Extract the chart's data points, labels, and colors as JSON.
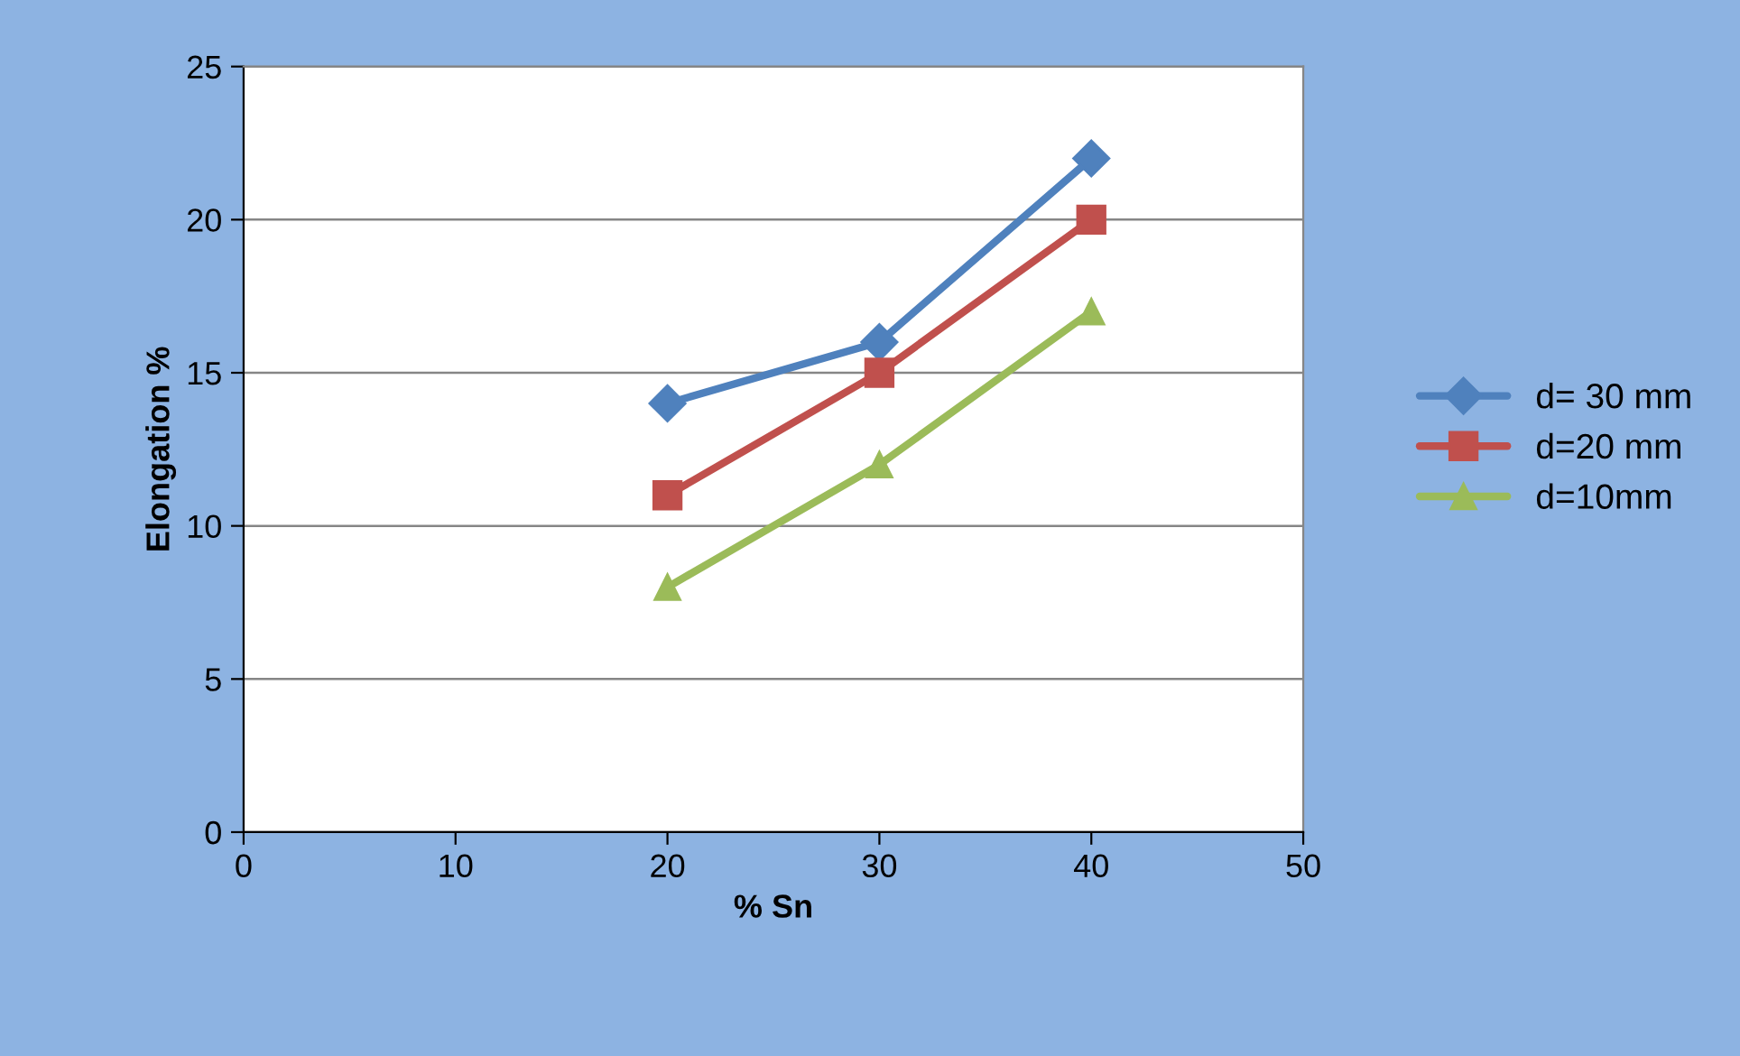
{
  "chart_data": {
    "type": "line",
    "xlabel": "% Sn",
    "ylabel": "Elongation %",
    "x": [
      20,
      30,
      40
    ],
    "series": [
      {
        "name": "d= 30 mm",
        "color": "#4f81bd",
        "marker": "diamond",
        "values": [
          14,
          16,
          22
        ]
      },
      {
        "name": "d=20 mm",
        "color": "#c0504d",
        "marker": "square",
        "values": [
          11,
          15,
          20
        ]
      },
      {
        "name": "d=10mm",
        "color": "#9bbb59",
        "marker": "triangle",
        "values": [
          8,
          12,
          17
        ]
      }
    ],
    "xlim": [
      0,
      50
    ],
    "xticks": [
      0,
      10,
      20,
      30,
      40,
      50
    ],
    "ylim": [
      0,
      25
    ],
    "yticks": [
      0,
      5,
      10,
      15,
      20,
      25
    ],
    "grid": "y",
    "legend": "right",
    "line_style": "solid"
  }
}
